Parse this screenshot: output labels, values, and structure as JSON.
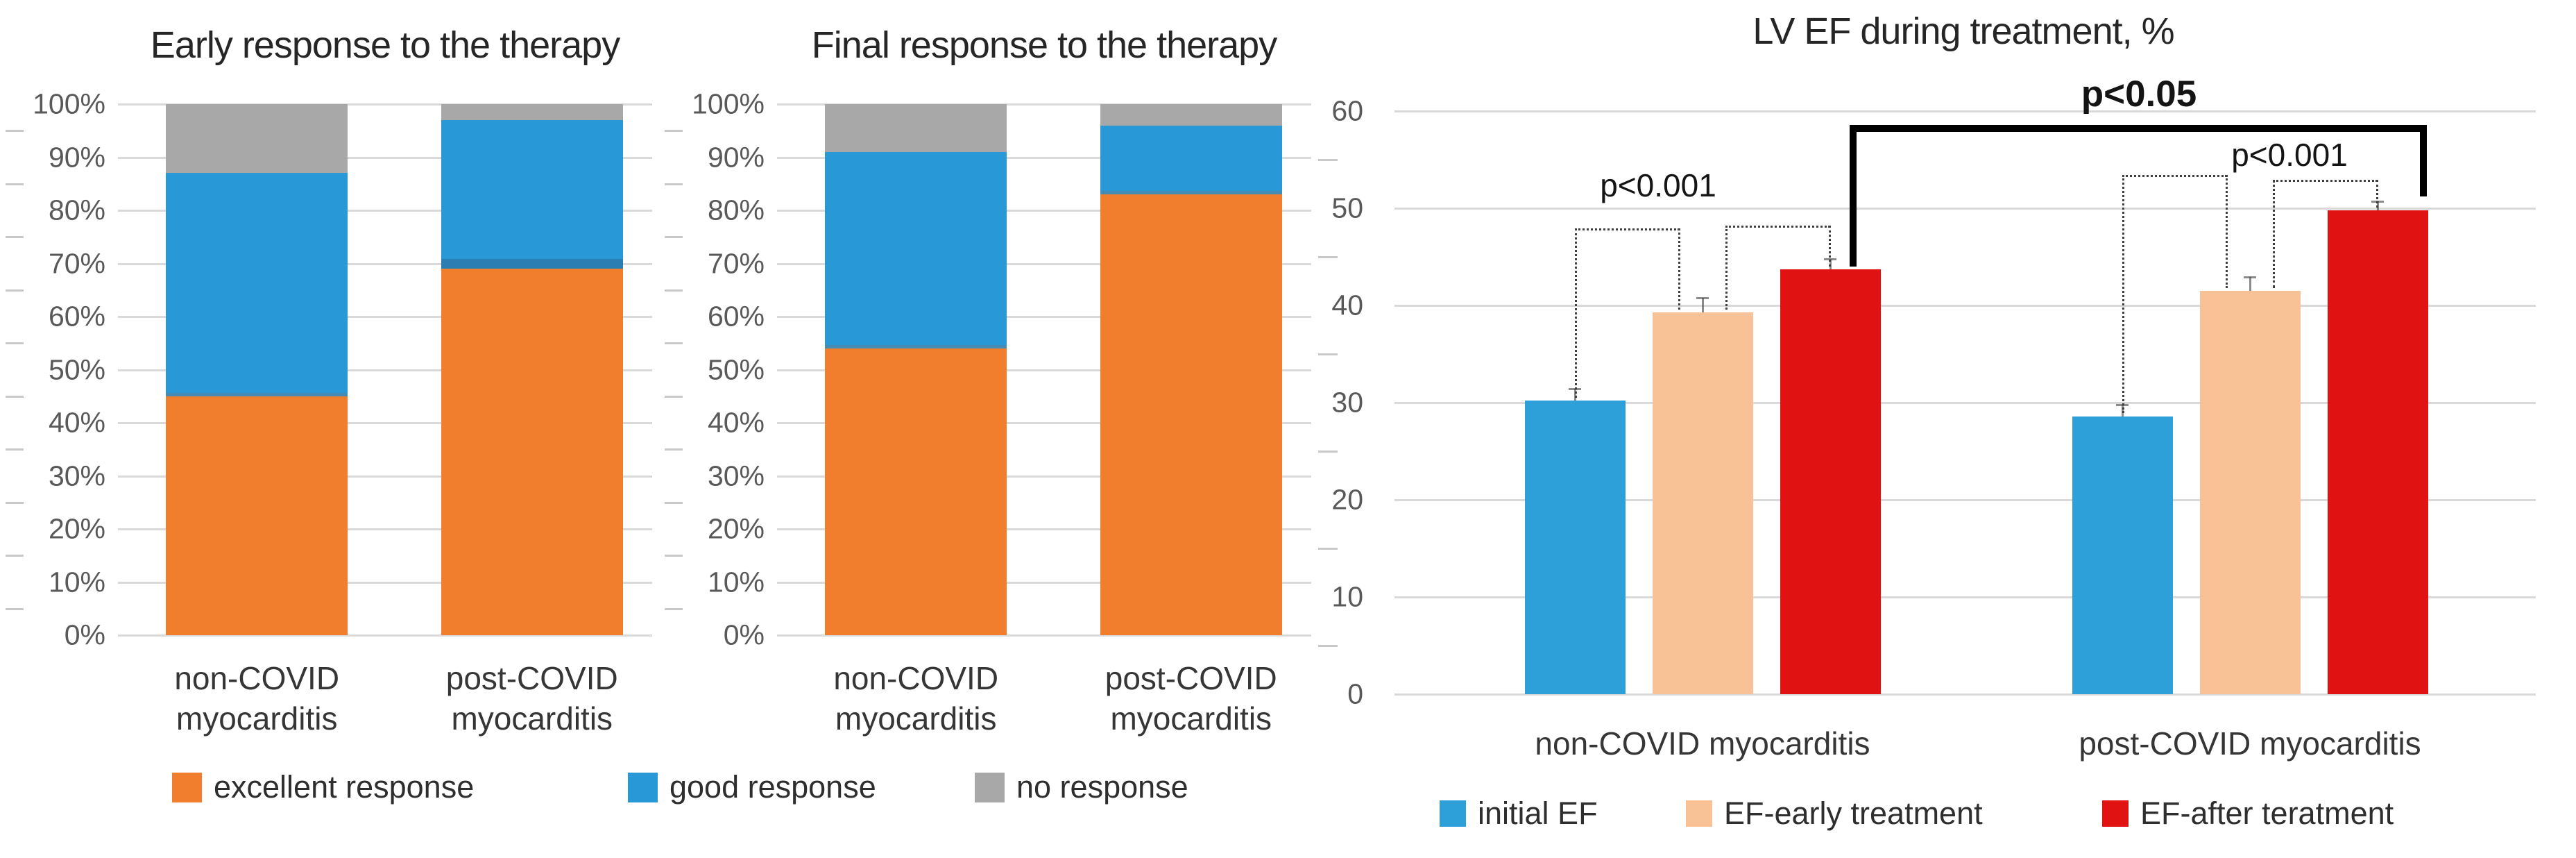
{
  "figure": {
    "background": "#ffffff",
    "description_texts": {
      "category_noncovid_line1": "non-COVID",
      "category_postcovid_line1": "post-COVID",
      "category_line2": "myocarditis"
    }
  },
  "colors": {
    "excellent": "#f07e2d",
    "good": "#2899d6",
    "none": "#a8a8a8",
    "initial_ef": "#2d9fd9",
    "ef_early": "#f9c296",
    "ef_after": "#e01212",
    "grid": "#d9d9d9",
    "axis_text": "#595959",
    "label_text": "#363636",
    "title_text": "#262626",
    "annotation": "#141414"
  },
  "chart_data": [
    {
      "type": "bar",
      "subtype": "stacked-100pct-column",
      "title": "Early response to the therapy",
      "ylabel": "",
      "xlabel": "",
      "ylim": [
        0,
        100
      ],
      "y_tick_step": 10,
      "y_tick_suffix": "%",
      "grid": true,
      "categories": [
        [
          "non-COVID",
          "myocarditis"
        ],
        [
          "post-COVID",
          "myocarditis"
        ]
      ],
      "series": [
        {
          "name": "excellent response",
          "color": "#f07e2d",
          "values": [
            45,
            69
          ]
        },
        {
          "name": "good response",
          "color": "#2899d6",
          "values": [
            42,
            28
          ]
        },
        {
          "name": "no response",
          "color": "#a8a8a8",
          "values": [
            13,
            3
          ]
        }
      ],
      "bar_seams": [
        "thin",
        "thick"
      ]
    },
    {
      "type": "bar",
      "subtype": "stacked-100pct-column",
      "title": "Final response to the therapy",
      "ylabel": "",
      "xlabel": "",
      "ylim": [
        0,
        100
      ],
      "y_tick_step": 10,
      "y_tick_suffix": "%",
      "grid": true,
      "categories": [
        [
          "non-COVID",
          "myocarditis"
        ],
        [
          "post-COVID",
          "myocarditis"
        ]
      ],
      "series": [
        {
          "name": "excellent response",
          "color": "#f07e2d",
          "values": [
            54,
            83
          ]
        },
        {
          "name": "good response",
          "color": "#2899d6",
          "values": [
            37,
            13
          ]
        },
        {
          "name": "no response",
          "color": "#a8a8a8",
          "values": [
            9,
            4
          ]
        }
      ],
      "bar_seams": [
        "thin",
        "thin"
      ]
    },
    {
      "type": "bar",
      "subtype": "grouped-column",
      "title": "LV EF during treatment, %",
      "ylabel": "",
      "xlabel": "",
      "ylim": [
        0,
        60
      ],
      "y_tick_step": 10,
      "y_tick_suffix": "",
      "grid": true,
      "categories": [
        "non-COVID myocarditis",
        "post-COVID myocarditis"
      ],
      "series": [
        {
          "name": "initial EF",
          "color": "#2d9fd9",
          "values": [
            30.2,
            28.6
          ]
        },
        {
          "name": "EF-early treatment",
          "color": "#f9c296",
          "values": [
            39.3,
            41.5
          ]
        },
        {
          "name": "EF-after teratment",
          "color": "#e01212",
          "values": [
            43.7,
            49.8
          ]
        }
      ],
      "error_bars_up": [
        [
          1.2,
          1.5,
          1.1
        ],
        [
          1.2,
          1.4,
          0.9
        ]
      ],
      "annotations": {
        "brackets": [
          {
            "style": "dotted",
            "x1": {
              "g": 0,
              "b": 0,
              "dx": 0
            },
            "x2": {
              "g": 0,
              "b": 1,
              "dx": -33
            },
            "y": 47.9,
            "drop1": 30.5,
            "drop2": 39.6
          },
          {
            "style": "dotted",
            "x1": {
              "g": 0,
              "b": 1,
              "dx": 33
            },
            "x2": {
              "g": 0,
              "b": 2,
              "dx": 0
            },
            "y": 48.2,
            "drop1": 39.6,
            "drop2": 44.0
          },
          {
            "style": "dotted",
            "x1": {
              "g": 1,
              "b": 0,
              "dx": 0
            },
            "x2": {
              "g": 1,
              "b": 1,
              "dx": -33
            },
            "y": 53.4,
            "drop1": 28.9,
            "drop2": 41.8
          },
          {
            "style": "dotted",
            "x1": {
              "g": 1,
              "b": 1,
              "dx": 33
            },
            "x2": {
              "g": 1,
              "b": 2,
              "dx": 0
            },
            "y": 52.9,
            "drop1": 41.8,
            "drop2": 50.1
          },
          {
            "style": "bold",
            "x1": {
              "g": 0,
              "b": 2,
              "dx": 28
            },
            "x2": {
              "g": 1,
              "b": 2,
              "dx": 61
            },
            "y": 58.6,
            "drop1": 44.0,
            "drop2": 51.2
          }
        ],
        "p_labels": [
          {
            "text": "p<0.001",
            "x": 2390,
            "y_value": 52.3,
            "bold": false
          },
          {
            "text": "p<0.001",
            "x": 3300,
            "y_value": 55.4,
            "bold": false
          },
          {
            "text": "p<0.05",
            "x": 3083,
            "y_value": 61.9,
            "bold": true
          }
        ]
      }
    }
  ]
}
